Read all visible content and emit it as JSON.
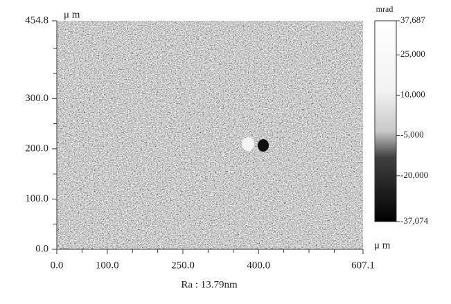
{
  "chart_data": {
    "type": "image",
    "x_unit": "μ m",
    "y_unit": "μ m",
    "colorbar_unit": "mrad",
    "caption": "Ra : 13.79nm",
    "xlim": [
      0,
      607.1
    ],
    "ylim": [
      0,
      454.8
    ],
    "xticks": [
      {
        "value": 0,
        "label": "0.0"
      },
      {
        "value": 100,
        "label": "100.0"
      },
      {
        "value": 250,
        "label": "250.0"
      },
      {
        "value": 400,
        "label": "400.0"
      },
      {
        "value": 607.1,
        "label": "607.1"
      }
    ],
    "xminor_ticks": [
      50,
      150,
      200,
      300,
      350,
      450,
      500,
      550
    ],
    "yticks": [
      {
        "value": 0,
        "label": "0.0"
      },
      {
        "value": 100,
        "label": "100.0"
      },
      {
        "value": 200,
        "label": "200.0"
      },
      {
        "value": 300,
        "label": "300.0"
      },
      {
        "value": 454.8,
        "label": "454.8"
      }
    ],
    "yminor_ticks": [
      50,
      150,
      250,
      350,
      400
    ],
    "clim": [
      -37074,
      37687
    ],
    "cticks": [
      {
        "value": 37687,
        "label": "37,687"
      },
      {
        "value": 25000,
        "label": "25,000"
      },
      {
        "value": 10000,
        "label": "10,000"
      },
      {
        "value": -5000,
        "label": "-5,000"
      },
      {
        "value": -20000,
        "label": "-20,000"
      },
      {
        "value": -37074,
        "label": "-37,074"
      }
    ]
  }
}
